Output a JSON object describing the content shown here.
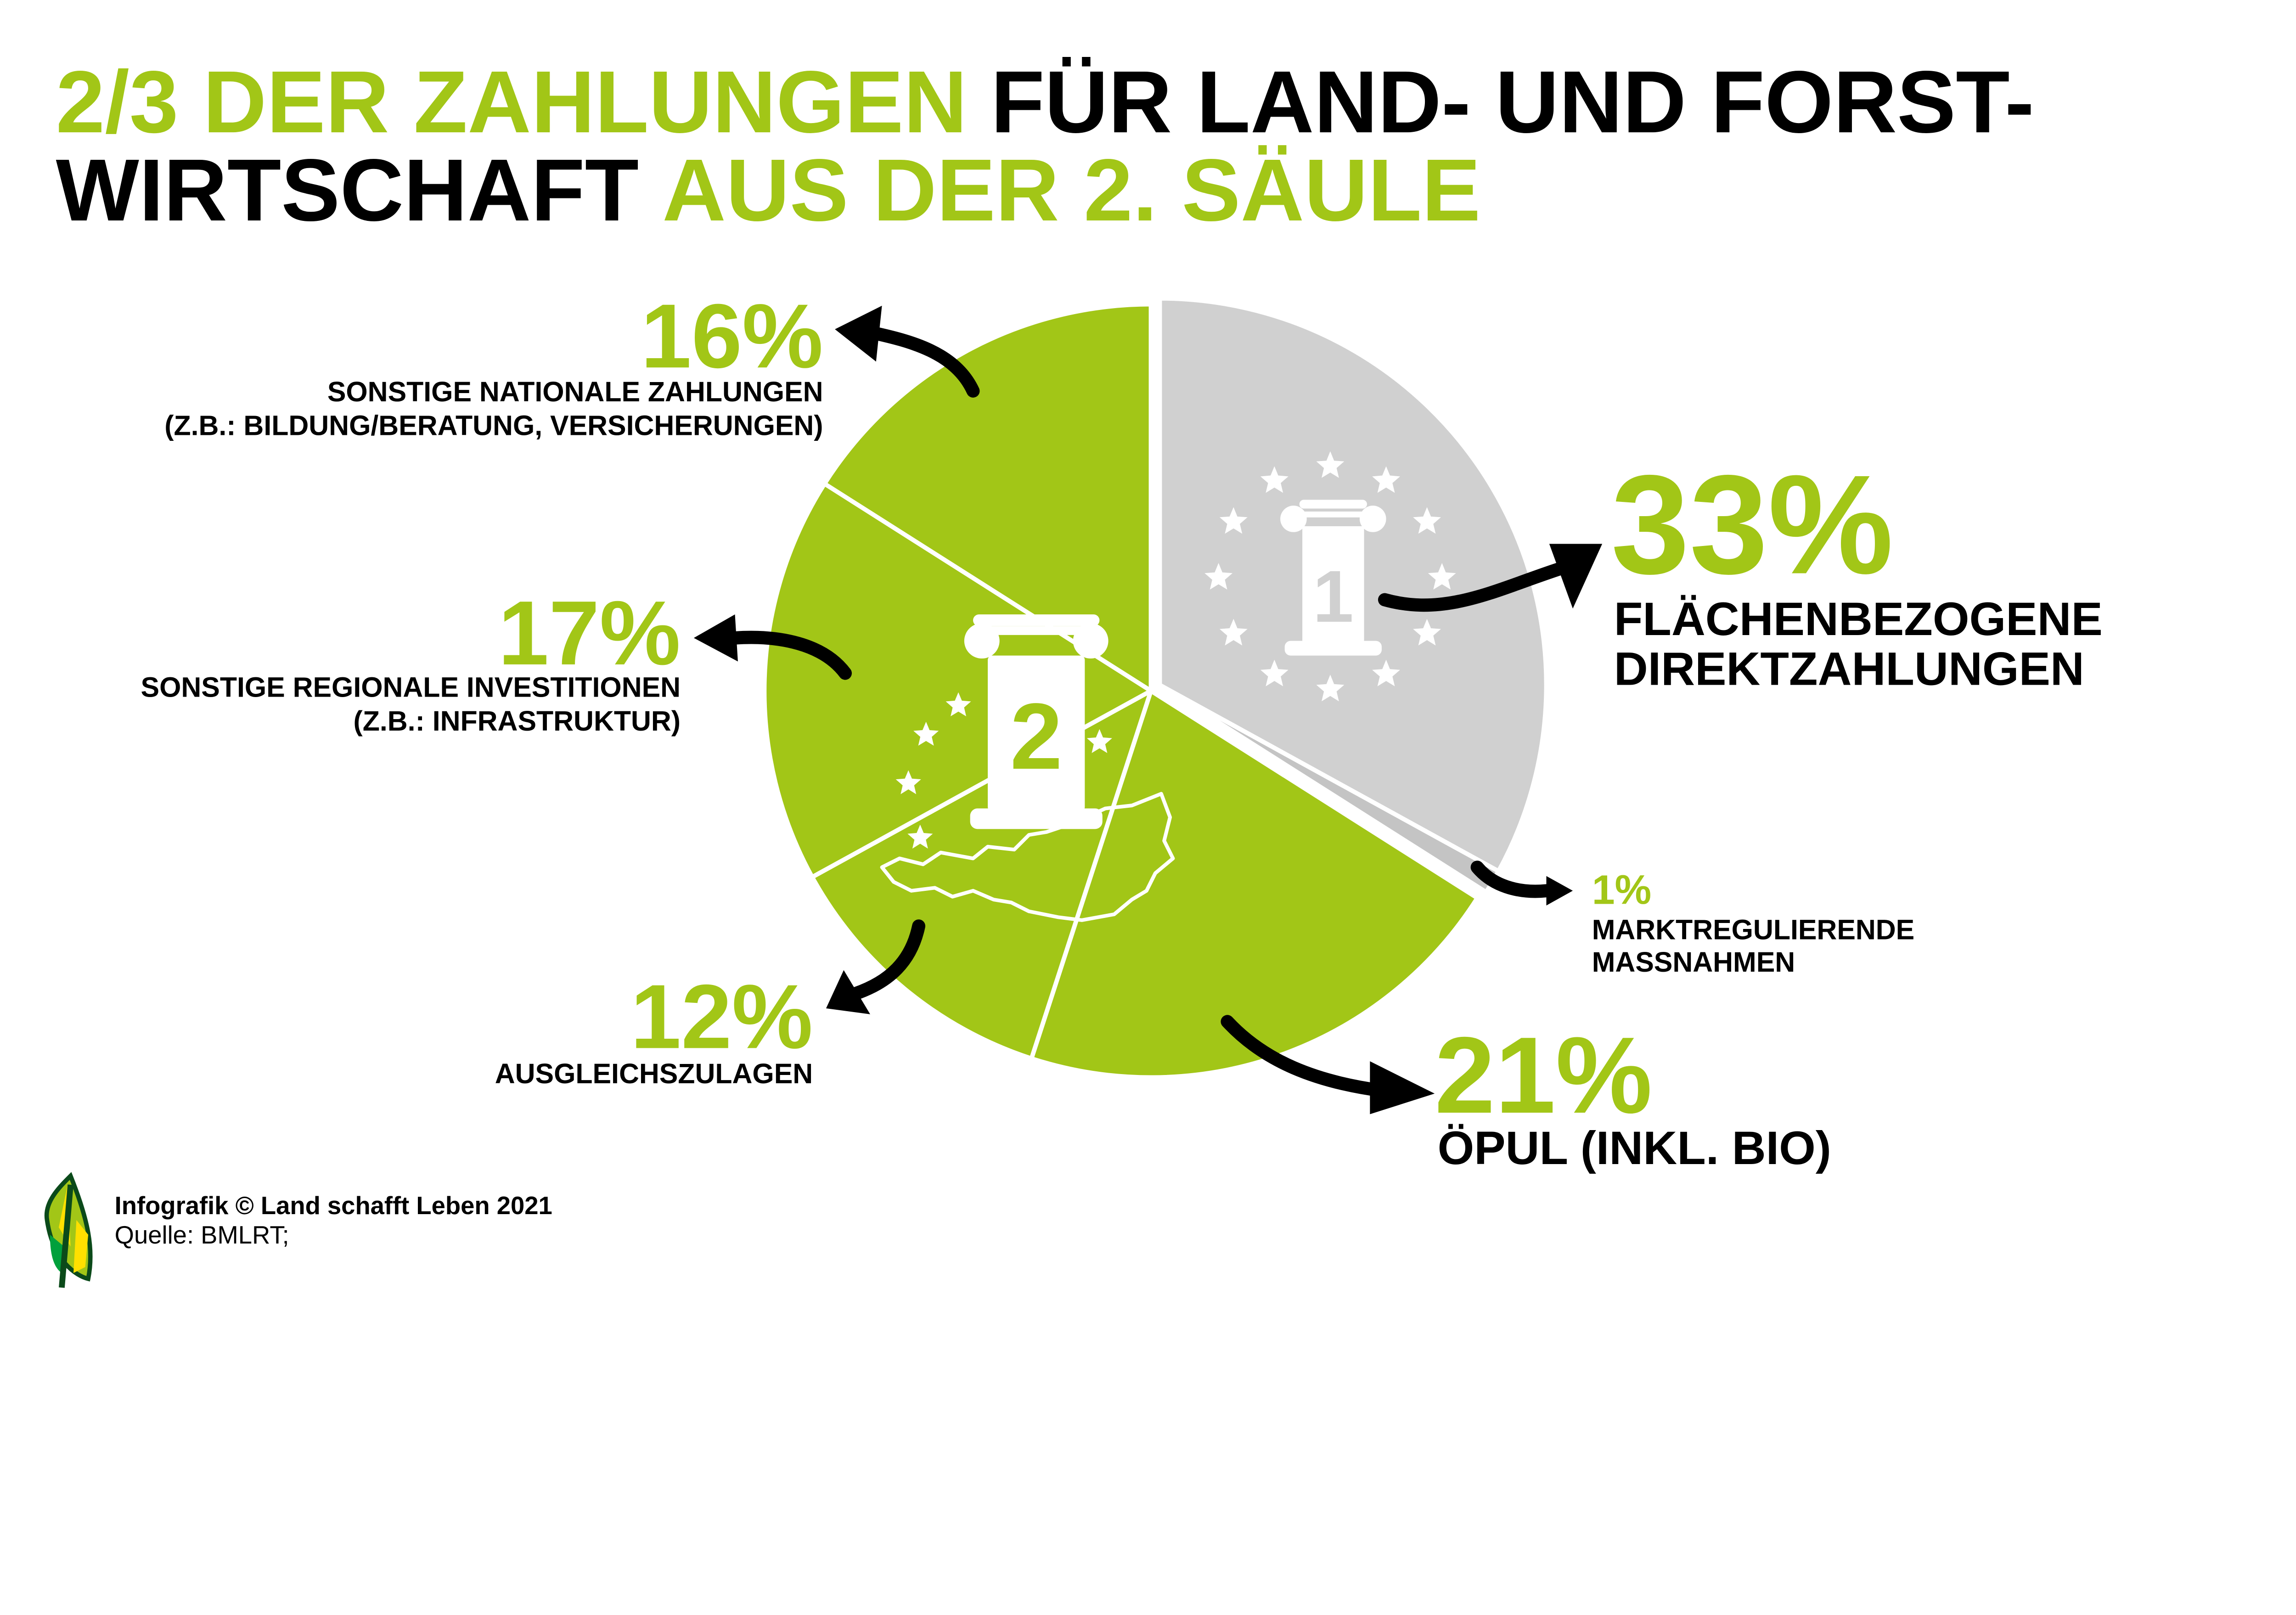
{
  "colors": {
    "green": "#a2c617",
    "gray": "#d0d0d0",
    "gray_dark": "#c4c4c4",
    "black": "#000000",
    "white": "#ffffff"
  },
  "title": {
    "line1_green": "2/3 DER ZAHLUNGEN",
    "line1_black": "FÜR LAND- UND FORST-",
    "line2_black": "WIRTSCHAFT",
    "line2_green": "AUS DER 2. SÄULE"
  },
  "chart_data": {
    "type": "pie",
    "title": "2/3 der Zahlungen für Land- und Forstwirtschaft aus der 2. Säule",
    "slices": [
      {
        "key": "direkt",
        "value": 33,
        "label": "33%",
        "name": [
          "FLÄCHENBEZOGENE",
          "DIREKTZAHLUNGEN"
        ],
        "color": "#d0d0d0",
        "pillar": 1
      },
      {
        "key": "markt",
        "value": 1,
        "label": "1%",
        "name": [
          "MARKTREGULIERENDE",
          "MASSNAHMEN"
        ],
        "color": "#c4c4c4",
        "pillar": 1
      },
      {
        "key": "oepul",
        "value": 21,
        "label": "21%",
        "name": [
          "ÖPUL (INKL. BIO)"
        ],
        "color": "#a2c617",
        "pillar": 2
      },
      {
        "key": "ausgleich",
        "value": 12,
        "label": "12%",
        "name": [
          "AUSGLEICHSZULAGEN"
        ],
        "color": "#a2c617",
        "pillar": 2
      },
      {
        "key": "regional",
        "value": 17,
        "label": "17%",
        "name": [
          "SONSTIGE REGIONALE INVESTITIONEN",
          "(Z.B.: INFRASTRUKTUR)"
        ],
        "color": "#a2c617",
        "pillar": 2
      },
      {
        "key": "national",
        "value": 16,
        "label": "16%",
        "name": [
          "SONSTIGE NATIONALE ZAHLUNGEN",
          "(Z.B.: BILDUNG/BERATUNG, VERSICHERUNGEN)"
        ],
        "color": "#a2c617",
        "pillar": 2
      }
    ],
    "pillar_icons": [
      "1",
      "2"
    ]
  },
  "footer": {
    "credit": "Infografik © Land schafft Leben 2021",
    "source": "Quelle: BMLRT;"
  },
  "icons": [
    "eu-pillar-1-icon",
    "pillar-2-icon",
    "austria-outline-icon",
    "star-icon",
    "leaf-logo-icon",
    "arrow-icon"
  ]
}
